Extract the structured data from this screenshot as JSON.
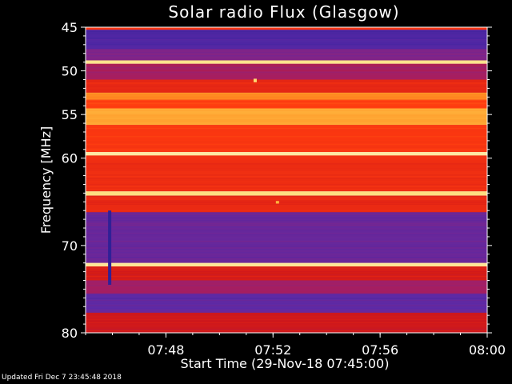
{
  "chart_data": {
    "type": "heatmap",
    "title": "Solar radio Flux (Glasgow)",
    "xlabel": "Start Time (29-Nov-18 07:45:00)",
    "ylabel": "Frequency [MHz]",
    "xlim": [
      "07:45",
      "08:00"
    ],
    "ylim": [
      45,
      80
    ],
    "x_ticks": [
      "07:48",
      "07:52",
      "07:56",
      "08:00"
    ],
    "y_ticks": [
      45,
      50,
      55,
      60,
      70,
      80
    ],
    "colormap": [
      "#1a1a8c",
      "#5a2aa8",
      "#a0206a",
      "#d01818",
      "#ff3a10",
      "#ff8a20",
      "#ffd050",
      "#fff0c0"
    ],
    "bands": [
      {
        "f0": 45.0,
        "f1": 45.3,
        "level": 0.55
      },
      {
        "f0": 45.3,
        "f1": 47.5,
        "level": 0.12
      },
      {
        "f0": 47.5,
        "f1": 48.8,
        "level": 0.22
      },
      {
        "f0": 48.8,
        "f1": 49.2,
        "level": 0.95
      },
      {
        "f0": 49.2,
        "f1": 51.0,
        "level": 0.3
      },
      {
        "f0": 51.0,
        "f1": 52.5,
        "level": 0.5
      },
      {
        "f0": 52.5,
        "f1": 53.3,
        "level": 0.72
      },
      {
        "f0": 53.3,
        "f1": 54.3,
        "level": 0.58
      },
      {
        "f0": 54.3,
        "f1": 56.2,
        "level": 0.78
      },
      {
        "f0": 56.2,
        "f1": 59.3,
        "level": 0.56
      },
      {
        "f0": 59.3,
        "f1": 59.7,
        "level": 0.95
      },
      {
        "f0": 59.7,
        "f1": 63.8,
        "level": 0.52
      },
      {
        "f0": 63.8,
        "f1": 64.3,
        "level": 0.92
      },
      {
        "f0": 64.3,
        "f1": 66.2,
        "level": 0.5
      },
      {
        "f0": 66.2,
        "f1": 72.0,
        "level": 0.18
      },
      {
        "f0": 72.0,
        "f1": 72.4,
        "level": 0.95
      },
      {
        "f0": 72.4,
        "f1": 74.0,
        "level": 0.45
      },
      {
        "f0": 74.0,
        "f1": 75.5,
        "level": 0.3
      },
      {
        "f0": 75.5,
        "f1": 77.7,
        "level": 0.15
      },
      {
        "f0": 77.7,
        "f1": 80.0,
        "level": 0.42
      }
    ],
    "spikes": [
      {
        "t": "07:45:54",
        "f0": 66.0,
        "f1": 74.5,
        "level": 0.05
      },
      {
        "t": "07:51:20",
        "f0": 50.9,
        "f1": 51.3,
        "level": 0.9
      },
      {
        "t": "07:52:10",
        "f0": 64.9,
        "f1": 65.2,
        "level": 0.8
      }
    ]
  },
  "footer": {
    "updated": "Updated Fri Dec  7 23:45:48 2018"
  }
}
